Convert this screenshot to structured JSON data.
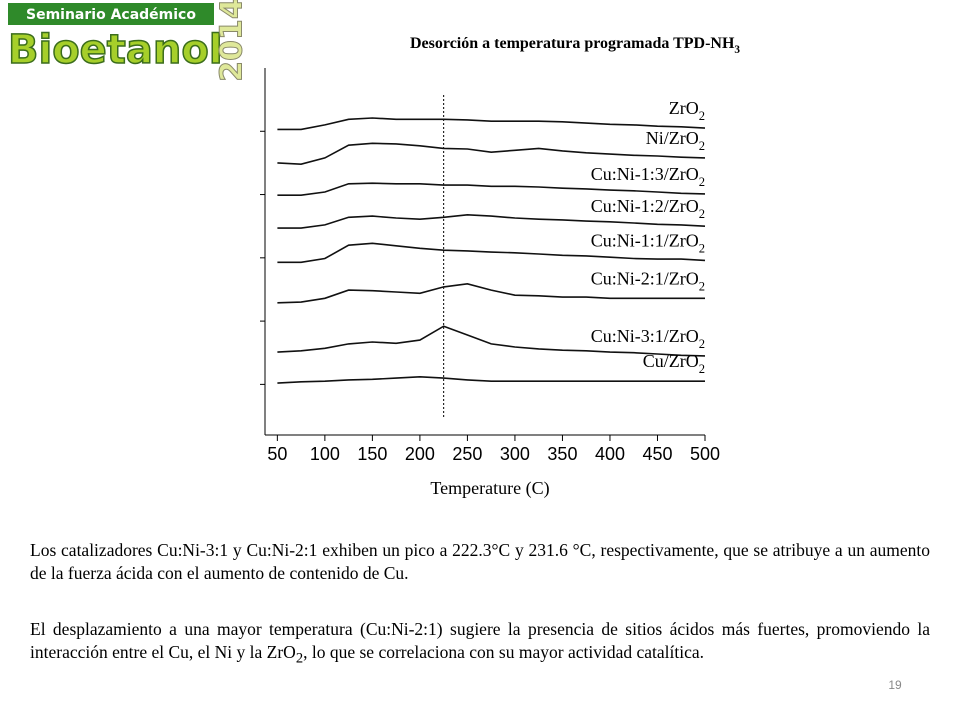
{
  "header": {
    "banner": "Seminario Académico",
    "logo": "Bioetanol",
    "year": "2014"
  },
  "chart_data": {
    "type": "line",
    "title": "Desorción a temperatura programada TPD-NH3",
    "x_label": "Temperature (C)",
    "x": [
      50,
      75,
      100,
      125,
      150,
      175,
      200,
      225,
      250,
      275,
      300,
      325,
      350,
      375,
      400,
      425,
      450,
      475,
      500
    ],
    "xlim": [
      37,
      500
    ],
    "xticks": [
      50,
      100,
      150,
      200,
      250,
      300,
      350,
      400,
      450,
      500
    ],
    "ylim": [
      0.2,
      6
    ],
    "yticks": [
      1,
      2,
      3,
      4,
      5
    ],
    "reference_line_x": 225,
    "series": [
      {
        "name": "ZrO2",
        "color": "#111111",
        "values": [
          5.03,
          5.03,
          5.1,
          5.19,
          5.21,
          5.19,
          5.19,
          5.19,
          5.18,
          5.16,
          5.16,
          5.16,
          5.15,
          5.13,
          5.11,
          5.1,
          5.08,
          5.07,
          5.05
        ]
      },
      {
        "name": "Ni/ZrO2",
        "color": "#111111",
        "values": [
          4.5,
          4.48,
          4.58,
          4.78,
          4.81,
          4.8,
          4.77,
          4.73,
          4.72,
          4.67,
          4.7,
          4.73,
          4.69,
          4.66,
          4.64,
          4.62,
          4.61,
          4.59,
          4.58
        ]
      },
      {
        "name": "Cu:Ni-1:3/ZrO2",
        "color": "#111111",
        "values": [
          3.99,
          3.99,
          4.04,
          4.17,
          4.18,
          4.17,
          4.17,
          4.15,
          4.15,
          4.13,
          4.13,
          4.12,
          4.1,
          4.09,
          4.07,
          4.06,
          4.04,
          4.02,
          4.01
        ]
      },
      {
        "name": "Cu:Ni-1:2/ZrO2",
        "color": "#111111",
        "values": [
          3.47,
          3.47,
          3.52,
          3.64,
          3.66,
          3.63,
          3.61,
          3.64,
          3.68,
          3.66,
          3.63,
          3.61,
          3.6,
          3.58,
          3.57,
          3.55,
          3.53,
          3.52,
          3.5
        ]
      },
      {
        "name": "Cu:Ni-1:1/ZrO2",
        "color": "#111111",
        "values": [
          2.93,
          2.93,
          2.99,
          3.2,
          3.23,
          3.19,
          3.15,
          3.12,
          3.11,
          3.09,
          3.08,
          3.06,
          3.04,
          3.03,
          3.01,
          2.99,
          2.98,
          2.98,
          2.96
        ]
      },
      {
        "name": "Cu:Ni-2:1/ZrO2",
        "color": "#111111",
        "values": [
          2.29,
          2.3,
          2.36,
          2.49,
          2.48,
          2.46,
          2.44,
          2.54,
          2.59,
          2.49,
          2.41,
          2.4,
          2.38,
          2.38,
          2.36,
          2.36,
          2.36,
          2.36,
          2.36
        ]
      },
      {
        "name": "Cu:Ni-3:1/ZrO2",
        "color": "#111111",
        "values": [
          1.51,
          1.53,
          1.57,
          1.64,
          1.67,
          1.65,
          1.7,
          1.92,
          1.78,
          1.64,
          1.59,
          1.56,
          1.54,
          1.53,
          1.51,
          1.5,
          1.48,
          1.46,
          1.45
        ]
      },
      {
        "name": "Cu/ZrO2",
        "color": "#111111",
        "values": [
          1.02,
          1.04,
          1.05,
          1.07,
          1.08,
          1.1,
          1.12,
          1.1,
          1.07,
          1.05,
          1.05,
          1.05,
          1.05,
          1.05,
          1.05,
          1.05,
          1.05,
          1.05,
          1.05
        ]
      }
    ]
  },
  "body": {
    "paragraphs": [
      "Los catalizadores Cu:Ni-3:1 y Cu:Ni-2:1 exhiben un pico a 222.3°C y 231.6 °C, respectivamente, que se atribuye a un aumento de la fuerza ácida con el aumento de contenido de Cu.",
      "El desplazamiento a una mayor temperatura (Cu:Ni-2:1) sugiere la presencia de sitios ácidos más fuertes, promoviendo la interacción entre el Cu, el Ni y la ZrO2, lo que se correlaciona con su mayor actividad catalítica."
    ]
  },
  "footer": {
    "page_number": "19"
  }
}
